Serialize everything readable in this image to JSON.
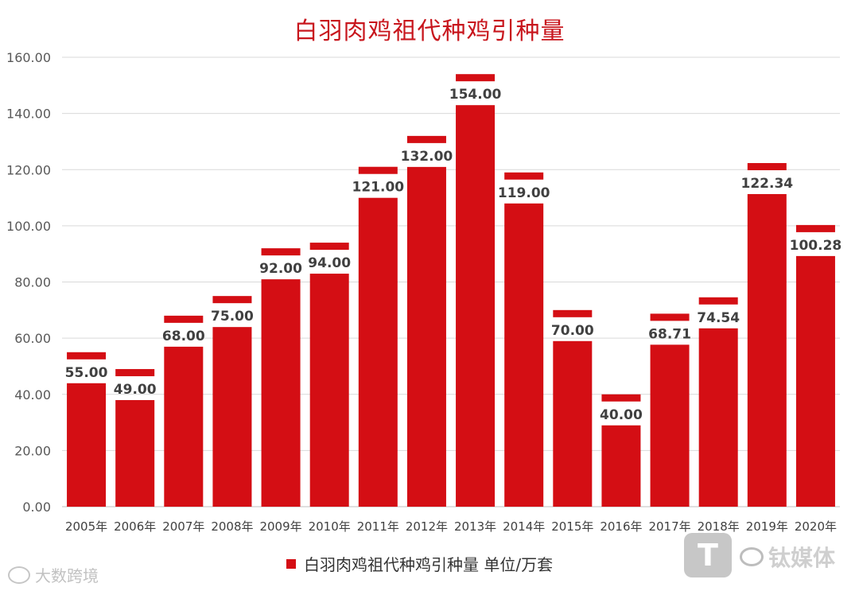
{
  "chart_data": {
    "type": "bar",
    "title": "白羽肉鸡祖代种鸡引种量",
    "categories": [
      "2005年",
      "2006年",
      "2007年",
      "2008年",
      "2009年",
      "2010年",
      "2011年",
      "2012年",
      "2013年",
      "2014年",
      "2015年",
      "2016年",
      "2017年",
      "2018年",
      "2019年",
      "2020年"
    ],
    "series": [
      {
        "name": "白羽肉鸡祖代种鸡引种量 单位/万套",
        "values": [
          55.0,
          49.0,
          68.0,
          75.0,
          92.0,
          94.0,
          121.0,
          132.0,
          154.0,
          119.0,
          70.0,
          40.0,
          68.71,
          74.54,
          122.34,
          100.28
        ],
        "labels": [
          "55.00",
          "49.00",
          "68.00",
          "75.00",
          "92.00",
          "94.00",
          "121.00",
          "132.00",
          "154.00",
          "119.00",
          "70.00",
          "40.00",
          "68.71",
          "74.54",
          "122.34",
          "100.28"
        ]
      }
    ],
    "yticks": [
      "0.00",
      "20.00",
      "40.00",
      "60.00",
      "80.00",
      "100.00",
      "120.00",
      "140.00",
      "160.00"
    ],
    "ylim": [
      0,
      160
    ],
    "grid": true,
    "legend_position": "bottom",
    "bar_color": "#d40e14",
    "title_color": "#c8161d"
  },
  "watermarks": {
    "left": "大数跨境",
    "logo": "T",
    "right": "钛媒体"
  }
}
